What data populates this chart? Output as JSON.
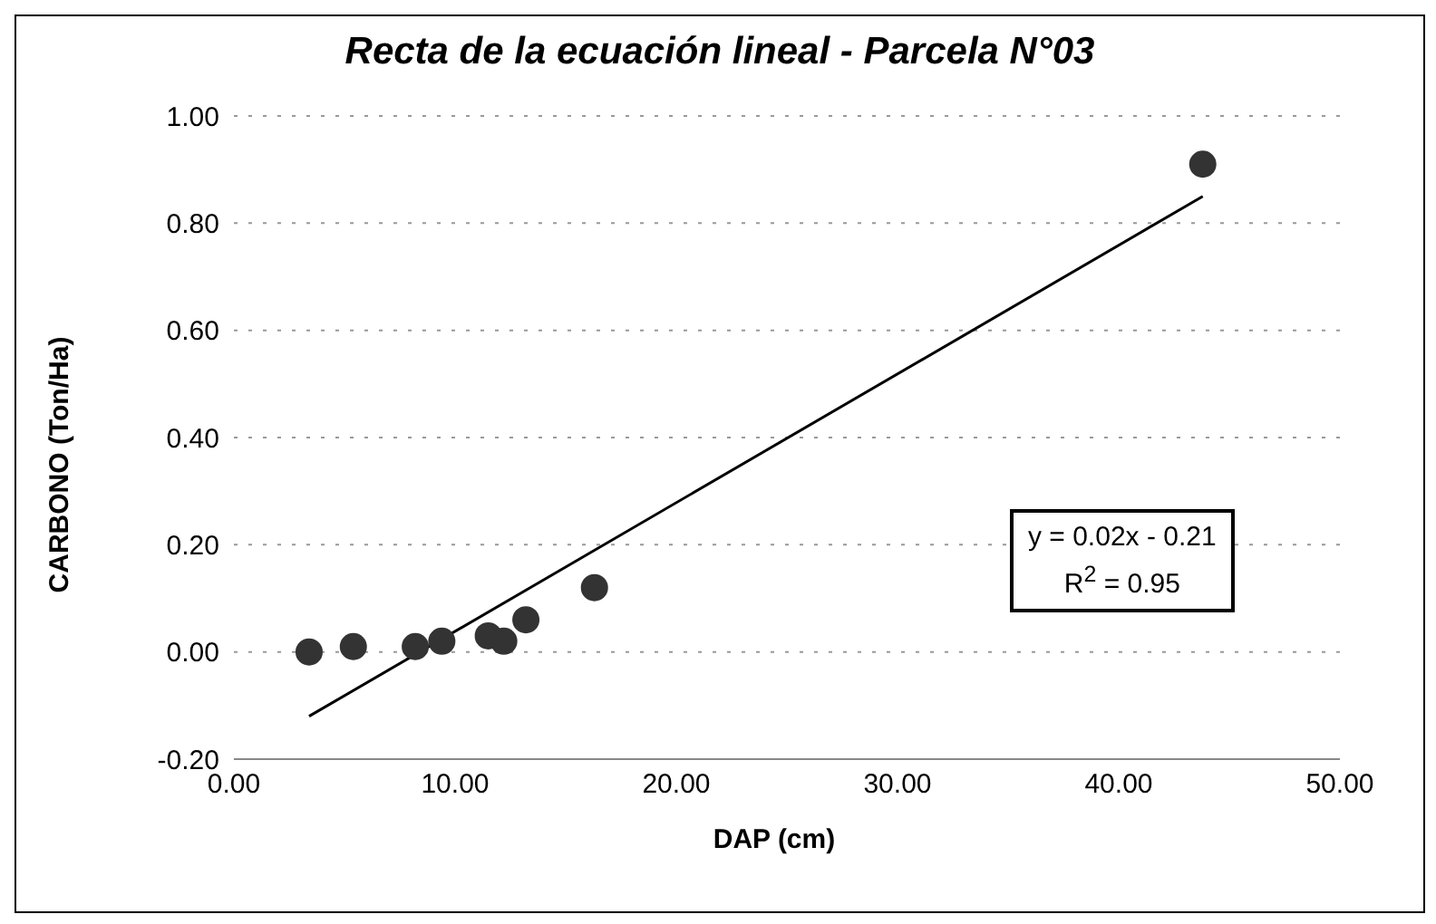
{
  "chart_data": {
    "type": "scatter",
    "title": "Recta de la ecuación lineal - Parcela N°03",
    "xlabel": "DAP (cm)",
    "ylabel": "CARBONO (Ton/Ha)",
    "xlim": [
      0,
      50
    ],
    "xticks": [
      {
        "value": 0,
        "label": "0.00"
      },
      {
        "value": 10,
        "label": "10.00"
      },
      {
        "value": 20,
        "label": "20.00"
      },
      {
        "value": 30,
        "label": "30.00"
      },
      {
        "value": 40,
        "label": "40.00"
      },
      {
        "value": 50,
        "label": "50.00"
      }
    ],
    "ylim": [
      -0.2,
      1.0
    ],
    "yticks": [
      {
        "value": -0.2,
        "label": "-0.20"
      },
      {
        "value": 0,
        "label": "0.00"
      },
      {
        "value": 0.2,
        "label": "0.20"
      },
      {
        "value": 0.4,
        "label": "0.40"
      },
      {
        "value": 0.6,
        "label": "0.60"
      },
      {
        "value": 0.8,
        "label": "0.80"
      },
      {
        "value": 1.0,
        "label": "1.00"
      }
    ],
    "grid": "y",
    "annotations": [
      "y = 0.02x - 0.21\nR$^{2}$ = 0.95"
    ],
    "series": [
      {
        "marker": "circle",
        "color": "#333333",
        "x": [
          3.4,
          5.4,
          8.2,
          9.4,
          11.5,
          12.2,
          13.2,
          16.3,
          43.8
        ],
        "values": [
          0.0,
          0.01,
          0.01,
          0.02,
          0.03,
          0.02,
          0.06,
          0.12,
          0.91
        ]
      },
      {
        "type": "line",
        "color": "#000000",
        "line_style": "solid",
        "x": [
          3.4,
          43.8
        ],
        "values": [
          -0.12,
          0.85
        ]
      }
    ]
  }
}
